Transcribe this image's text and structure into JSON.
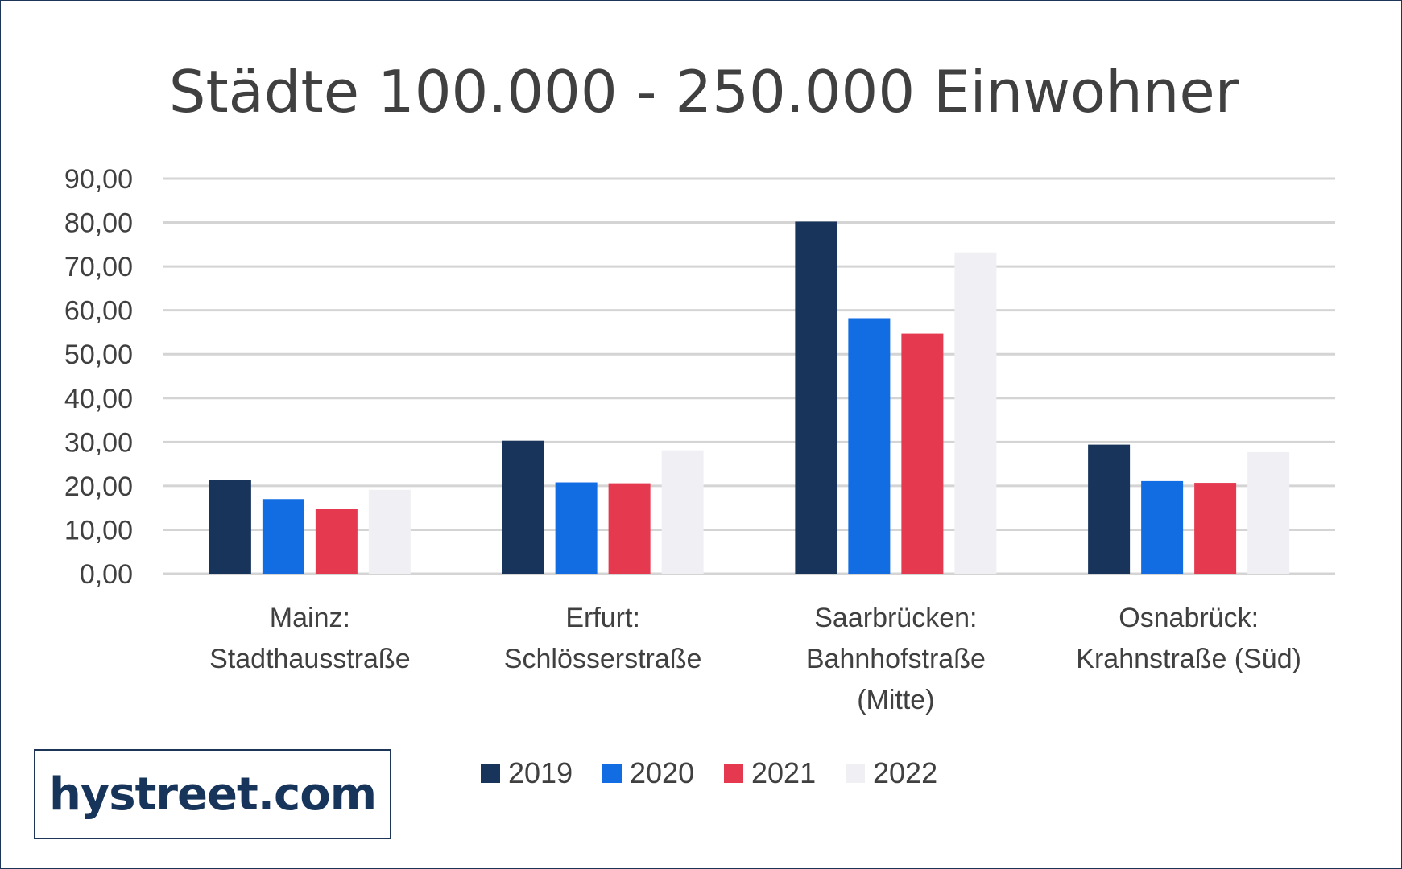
{
  "chart_data": {
    "type": "bar",
    "title": "Städte 100.000 - 250.000 Einwohner",
    "categories": [
      [
        "Mainz:",
        "Stadthausstraße"
      ],
      [
        "Erfurt:",
        "Schlösserstraße"
      ],
      [
        "Saarbrücken:",
        "Bahnhofstraße",
        "(Mitte)"
      ],
      [
        "Osnabrück:",
        "Krahnstraße (Süd)"
      ]
    ],
    "series": [
      {
        "name": "2019",
        "color": "#18345a",
        "values": [
          21.3,
          30.3,
          80.2,
          29.4
        ]
      },
      {
        "name": "2020",
        "color": "#126de3",
        "values": [
          17.0,
          20.8,
          58.2,
          21.1
        ]
      },
      {
        "name": "2021",
        "color": "#e5394f",
        "values": [
          14.8,
          20.6,
          54.7,
          20.7
        ]
      },
      {
        "name": "2022",
        "color": "#f0f0f4",
        "values": [
          19.1,
          28.1,
          73.2,
          27.7
        ]
      }
    ],
    "yticks": [
      "0,00",
      "10,00",
      "20,00",
      "30,00",
      "40,00",
      "50,00",
      "60,00",
      "70,00",
      "80,00",
      "90,00"
    ],
    "ylim": [
      0,
      90
    ],
    "grid": true,
    "legend_position": "bottom"
  },
  "logo": {
    "text": "hystreet.com"
  }
}
